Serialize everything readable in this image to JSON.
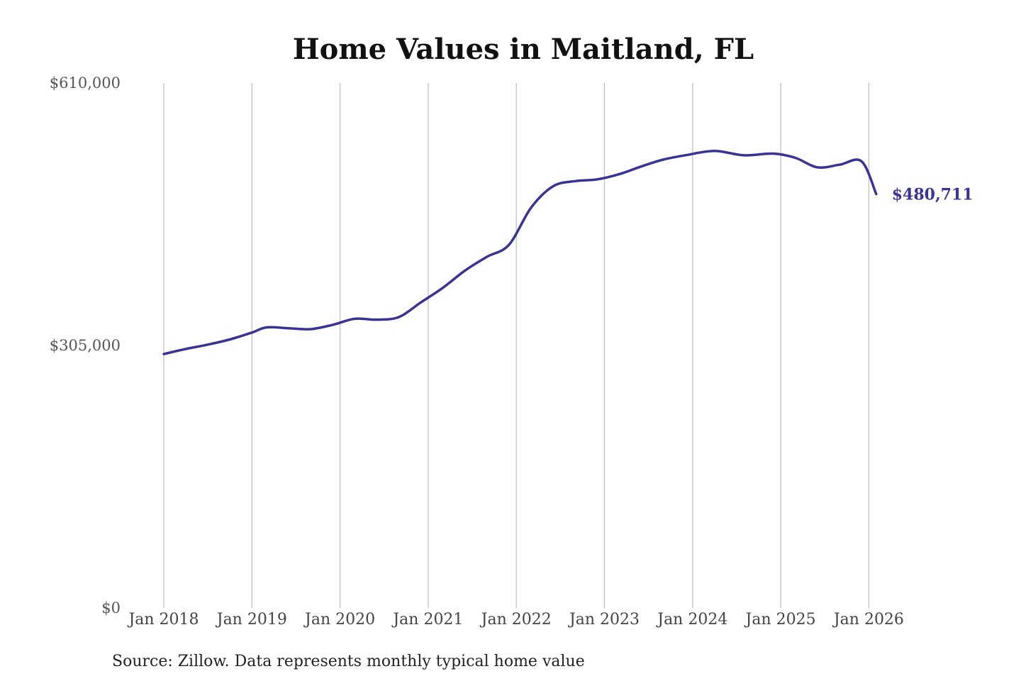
{
  "title": "Home Values in Maitland, FL",
  "source": "Source: Zillow. Data represents monthly typical home value",
  "colors": {
    "line": "#3a3396",
    "grid": "#bdbdbd",
    "text": "#111111"
  },
  "chart_data": {
    "type": "line",
    "title": "Home Values in Maitland, FL",
    "xlabel": "",
    "ylabel": "",
    "ylim": [
      0,
      610000
    ],
    "xlim": [
      "2018-01",
      "2026-02"
    ],
    "y_ticks": [
      "$610,000",
      "$305,000",
      "$0"
    ],
    "y_tick_values": [
      610000,
      305000,
      0
    ],
    "x_ticks": [
      "Jan 2018",
      "Jan 2019",
      "Jan 2020",
      "Jan 2021",
      "Jan 2022",
      "Jan 2023",
      "Jan 2024",
      "Jan 2025",
      "Jan 2026"
    ],
    "x_tick_dates": [
      "2018-01",
      "2019-01",
      "2020-01",
      "2021-01",
      "2022-01",
      "2023-01",
      "2024-01",
      "2025-01",
      "2026-01"
    ],
    "grid": "vertical",
    "series": [
      {
        "end_label": "$480,711",
        "x": [
          "2018-01",
          "2018-04",
          "2018-07",
          "2018-10",
          "2019-01",
          "2019-03",
          "2019-06",
          "2019-09",
          "2019-12",
          "2020-03",
          "2020-06",
          "2020-09",
          "2020-12",
          "2021-03",
          "2021-06",
          "2021-09",
          "2021-12",
          "2022-03",
          "2022-06",
          "2022-09",
          "2022-12",
          "2023-03",
          "2023-06",
          "2023-09",
          "2023-12",
          "2024-04",
          "2024-08",
          "2024-12",
          "2025-03",
          "2025-06",
          "2025-09",
          "2025-12",
          "2026-02"
        ],
        "y": [
          295000,
          301000,
          306000,
          312000,
          320000,
          326000,
          325000,
          324000,
          329000,
          336000,
          335000,
          338000,
          355000,
          372000,
          392000,
          408000,
          422000,
          465000,
          490000,
          496000,
          498000,
          504000,
          513000,
          521000,
          526000,
          531000,
          526000,
          528000,
          523000,
          512000,
          515000,
          519000,
          481000
        ]
      }
    ]
  }
}
